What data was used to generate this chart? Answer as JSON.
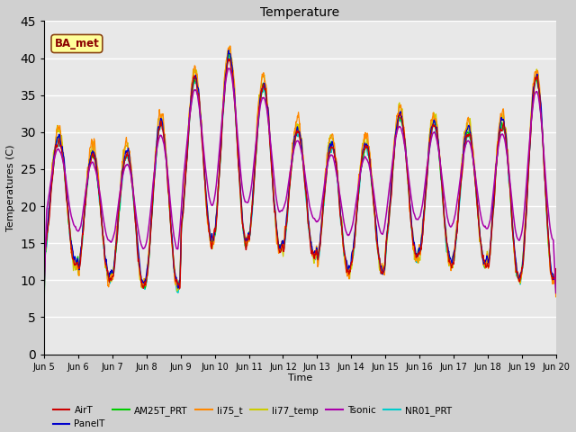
{
  "title": "Temperature",
  "ylabel": "Temperatures (C)",
  "xlabel": "Time",
  "annotation": "BA_met",
  "ylim": [
    0,
    45
  ],
  "yticks": [
    0,
    5,
    10,
    15,
    20,
    25,
    30,
    35,
    40,
    45
  ],
  "series_colors": {
    "AirT": "#cc0000",
    "PanelT": "#0000cc",
    "AM25T_PRT": "#00cc00",
    "li75_t": "#ff8800",
    "li77_temp": "#cccc00",
    "Tsonic": "#aa00aa",
    "NR01_PRT": "#00cccc"
  },
  "fig_bg": "#d0d0d0",
  "ax_bg": "#e8e8e8",
  "n_days": 15,
  "start_day": 5,
  "figsize": [
    6.4,
    4.8
  ],
  "dpi": 100
}
